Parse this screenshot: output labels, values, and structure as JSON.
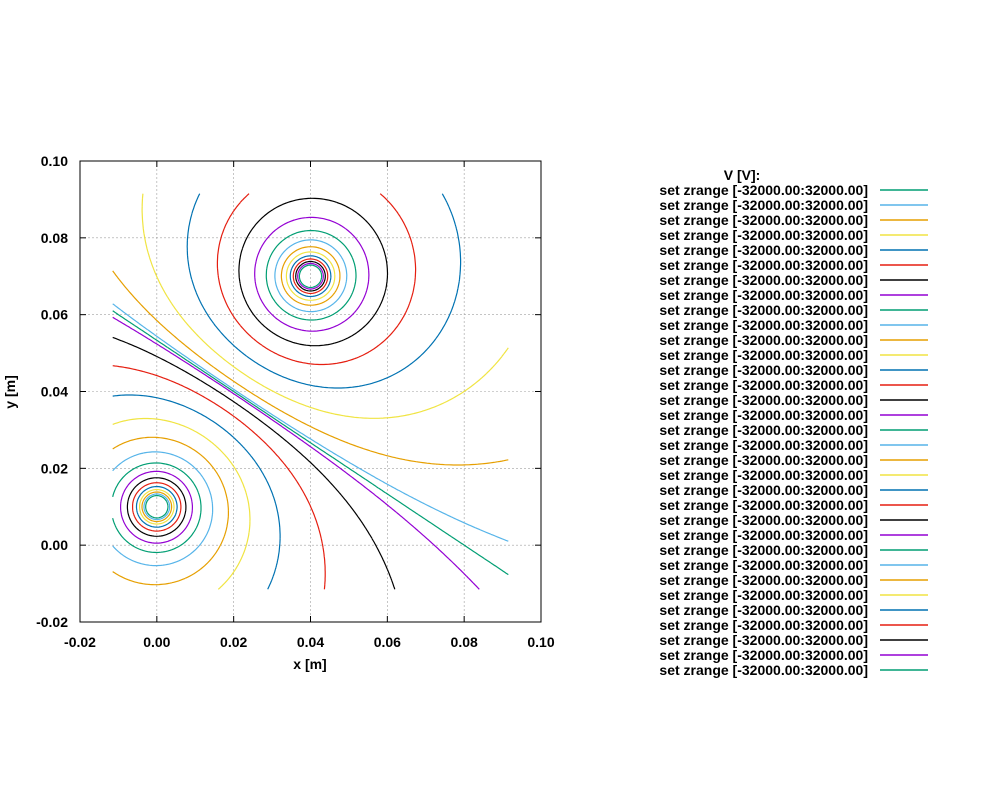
{
  "chart_data": {
    "type": "contour",
    "title": "",
    "xlabel": "x [m]",
    "ylabel": "y [m]",
    "xlim": [
      -0.02,
      0.1
    ],
    "ylim": [
      -0.02,
      0.1
    ],
    "x_ticks": [
      "-0.02",
      "0.00",
      "0.02",
      "0.04",
      "0.06",
      "0.08",
      "0.10"
    ],
    "y_ticks": [
      "-0.02",
      "0.00",
      "0.02",
      "0.04",
      "0.06",
      "0.08",
      "0.10"
    ],
    "grid": true,
    "legend_placement": "right",
    "legend_title": "V [V]:",
    "charges": [
      {
        "x": 0.04,
        "y": 0.07,
        "sign": 1
      },
      {
        "x": 0.0,
        "y": 0.01,
        "sign": -1
      }
    ],
    "series": [
      {
        "label": "set zrange [-32000.00:32000.00]",
        "color": "#009e73"
      },
      {
        "label": "set zrange [-32000.00:32000.00]",
        "color": "#56b4e9"
      },
      {
        "label": "set zrange [-32000.00:32000.00]",
        "color": "#e69f00"
      },
      {
        "label": "set zrange [-32000.00:32000.00]",
        "color": "#f0e442"
      },
      {
        "label": "set zrange [-32000.00:32000.00]",
        "color": "#0072b2"
      },
      {
        "label": "set zrange [-32000.00:32000.00]",
        "color": "#e51e10"
      },
      {
        "label": "set zrange [-32000.00:32000.00]",
        "color": "#000000"
      },
      {
        "label": "set zrange [-32000.00:32000.00]",
        "color": "#9400d3"
      },
      {
        "label": "set zrange [-32000.00:32000.00]",
        "color": "#009e73"
      },
      {
        "label": "set zrange [-32000.00:32000.00]",
        "color": "#56b4e9"
      },
      {
        "label": "set zrange [-32000.00:32000.00]",
        "color": "#e69f00"
      },
      {
        "label": "set zrange [-32000.00:32000.00]",
        "color": "#f0e442"
      },
      {
        "label": "set zrange [-32000.00:32000.00]",
        "color": "#0072b2"
      },
      {
        "label": "set zrange [-32000.00:32000.00]",
        "color": "#e51e10"
      },
      {
        "label": "set zrange [-32000.00:32000.00]",
        "color": "#000000"
      },
      {
        "label": "set zrange [-32000.00:32000.00]",
        "color": "#9400d3"
      },
      {
        "label": "set zrange [-32000.00:32000.00]",
        "color": "#009e73"
      },
      {
        "label": "set zrange [-32000.00:32000.00]",
        "color": "#56b4e9"
      },
      {
        "label": "set zrange [-32000.00:32000.00]",
        "color": "#e69f00"
      },
      {
        "label": "set zrange [-32000.00:32000.00]",
        "color": "#f0e442"
      },
      {
        "label": "set zrange [-32000.00:32000.00]",
        "color": "#0072b2"
      },
      {
        "label": "set zrange [-32000.00:32000.00]",
        "color": "#e51e10"
      },
      {
        "label": "set zrange [-32000.00:32000.00]",
        "color": "#000000"
      },
      {
        "label": "set zrange [-32000.00:32000.00]",
        "color": "#9400d3"
      },
      {
        "label": "set zrange [-32000.00:32000.00]",
        "color": "#009e73"
      },
      {
        "label": "set zrange [-32000.00:32000.00]",
        "color": "#56b4e9"
      },
      {
        "label": "set zrange [-32000.00:32000.00]",
        "color": "#e69f00"
      },
      {
        "label": "set zrange [-32000.00:32000.00]",
        "color": "#f0e442"
      },
      {
        "label": "set zrange [-32000.00:32000.00]",
        "color": "#0072b2"
      },
      {
        "label": "set zrange [-32000.00:32000.00]",
        "color": "#e51e10"
      },
      {
        "label": "set zrange [-32000.00:32000.00]",
        "color": "#000000"
      },
      {
        "label": "set zrange [-32000.00:32000.00]",
        "color": "#9400d3"
      },
      {
        "label": "set zrange [-32000.00:32000.00]",
        "color": "#009e73"
      }
    ]
  }
}
